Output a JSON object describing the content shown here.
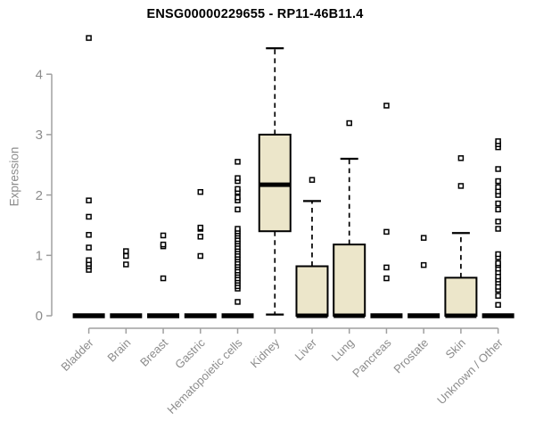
{
  "chart_data": {
    "type": "boxplot",
    "title": "ENSG00000229655 - RP11-46B11.4",
    "ylabel": "Expression",
    "xlabel": "",
    "ylim": [
      0,
      4.65
    ],
    "yticks": [
      0,
      1,
      2,
      3,
      4
    ],
    "grid": false,
    "legend": "none",
    "categories": [
      "Bladder",
      "Brain",
      "Breast",
      "Gastric",
      "Hematopoietic cells",
      "Kidney",
      "Liver",
      "Lung",
      "Pancreas",
      "Prostate",
      "Skin",
      "Unknown / Other"
    ],
    "series": [
      {
        "category": "Bladder",
        "q1": 0,
        "median": 0,
        "q3": 0,
        "whisker_low": 0,
        "whisker_high": 0,
        "outliers": [
          0.76,
          0.82,
          0.86,
          0.92,
          1.13,
          1.34,
          1.64,
          1.91,
          4.6
        ]
      },
      {
        "category": "Brain",
        "q1": 0,
        "median": 0,
        "q3": 0,
        "whisker_low": 0,
        "whisker_high": 0,
        "outliers": [
          0.85,
          0.99,
          1.07
        ]
      },
      {
        "category": "Breast",
        "q1": 0,
        "median": 0,
        "q3": 0,
        "whisker_low": 0,
        "whisker_high": 0,
        "outliers": [
          0.62,
          1.15,
          1.18,
          1.33
        ]
      },
      {
        "category": "Gastric",
        "q1": 0,
        "median": 0,
        "q3": 0,
        "whisker_low": 0,
        "whisker_high": 0,
        "outliers": [
          0.99,
          1.31,
          1.44,
          1.46,
          2.05
        ]
      },
      {
        "category": "Hematopoietic cells",
        "q1": 0,
        "median": 0,
        "q3": 0,
        "whisker_low": 0,
        "whisker_high": 0,
        "outliers": [
          0.23,
          0.45,
          0.49,
          0.54,
          0.58,
          0.62,
          0.67,
          0.71,
          0.75,
          0.8,
          0.84,
          0.88,
          0.93,
          0.97,
          1.01,
          1.06,
          1.1,
          1.14,
          1.19,
          1.23,
          1.27,
          1.32,
          1.36,
          1.4,
          1.44,
          1.76,
          1.91,
          1.96,
          2.05,
          2.1,
          2.23,
          2.28,
          2.55
        ]
      },
      {
        "category": "Kidney",
        "q1": 1.4,
        "median": 2.17,
        "q3": 3.0,
        "whisker_low": 0.02,
        "whisker_high": 4.43,
        "outliers": []
      },
      {
        "category": "Liver",
        "q1": 0,
        "median": 0,
        "q3": 0.82,
        "whisker_low": 0,
        "whisker_high": 1.9,
        "outliers": [
          2.25
        ]
      },
      {
        "category": "Lung",
        "q1": 0,
        "median": 0,
        "q3": 1.18,
        "whisker_low": 0,
        "whisker_high": 2.6,
        "outliers": [
          3.19
        ]
      },
      {
        "category": "Pancreas",
        "q1": 0,
        "median": 0,
        "q3": 0,
        "whisker_low": 0,
        "whisker_high": 0,
        "outliers": [
          0.62,
          0.8,
          1.39,
          3.48
        ]
      },
      {
        "category": "Prostate",
        "q1": 0,
        "median": 0,
        "q3": 0,
        "whisker_low": 0,
        "whisker_high": 0,
        "outliers": [
          0.84,
          1.29
        ]
      },
      {
        "category": "Skin",
        "q1": 0,
        "median": 0,
        "q3": 0.63,
        "whisker_low": 0,
        "whisker_high": 1.37,
        "outliers": [
          2.15,
          2.61
        ]
      },
      {
        "category": "Unknown / Other",
        "q1": 0,
        "median": 0,
        "q3": 0,
        "whisker_low": 0,
        "whisker_high": 0,
        "outliers": [
          0.18,
          0.33,
          0.43,
          0.48,
          0.55,
          0.6,
          0.65,
          0.72,
          0.78,
          0.84,
          0.87,
          0.97,
          1.02,
          1.44,
          1.56,
          1.76,
          1.86,
          2.0,
          2.06,
          2.13,
          2.23,
          2.43,
          2.79,
          2.84,
          2.89
        ]
      }
    ],
    "colors": {
      "box_fill": "#ece6ca",
      "box_stroke": "#000000",
      "median": "#000000",
      "whisker": "#000000",
      "outlier_stroke": "#000000",
      "outlier_fill": "#ffffff",
      "axis": "#a0a0a0",
      "tick_label": "#8c8c8c",
      "title": "#000000",
      "background": "#ffffff"
    }
  }
}
